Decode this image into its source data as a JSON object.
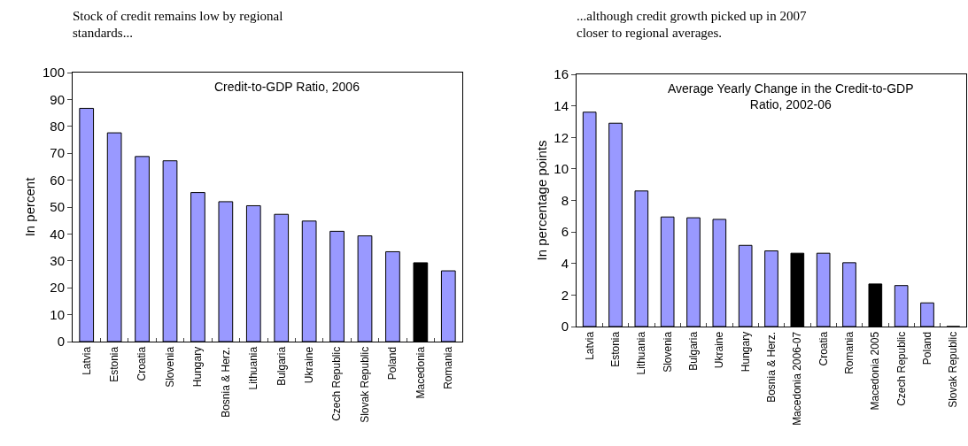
{
  "chart_data": [
    {
      "type": "bar",
      "title": "Stock of credit remains low by regional standards...",
      "ylabel": "In percent",
      "annotations": [
        "Credit-to-GDP Ratio, 2006"
      ],
      "categories": [
        "Latvia",
        "Estonia",
        "Croatia",
        "Slovenia",
        "Hungary",
        "Bosnia & Herz.",
        "Lithuania",
        "Bulgaria",
        "Ukraine",
        "Czech Republic",
        "Slovak Republic",
        "Poland",
        "Macedonia",
        "Romania"
      ],
      "values": [
        86.7,
        77.6,
        68.8,
        67.2,
        55.4,
        52.0,
        50.5,
        47.3,
        44.8,
        41.0,
        39.3,
        33.4,
        29.3,
        26.3
      ],
      "colors": [
        "#9999ff",
        "#9999ff",
        "#9999ff",
        "#9999ff",
        "#9999ff",
        "#9999ff",
        "#9999ff",
        "#9999ff",
        "#9999ff",
        "#9999ff",
        "#9999ff",
        "#9999ff",
        "#000000",
        "#9999ff"
      ],
      "ylim": [
        0,
        100
      ],
      "yticks": [
        0,
        10,
        20,
        30,
        40,
        50,
        60,
        70,
        80,
        90,
        100
      ],
      "grid": false
    },
    {
      "type": "bar",
      "title": "...although credit growth picked up in 2007 closer to regional averages.",
      "ylabel": "In percentage points",
      "annotations": [
        "Average Yearly Change in the Credit-to-GDP Ratio, 2002-06"
      ],
      "categories": [
        "Latvia",
        "Estonia",
        "Lithuania",
        "Slovenia",
        "Bulgaria",
        "Ukraine",
        "Hungary",
        "Bosnia & Herz.",
        "Macedonia 2006-07",
        "Croatia",
        "Romania",
        "Macedonia 2005",
        "Czech Republic",
        "Poland",
        "Slovak Republic"
      ],
      "values": [
        13.6,
        12.9,
        8.6,
        6.95,
        6.9,
        6.8,
        5.15,
        4.8,
        4.65,
        4.65,
        4.05,
        2.7,
        2.6,
        1.5,
        0
      ],
      "colors": [
        "#9999ff",
        "#9999ff",
        "#9999ff",
        "#9999ff",
        "#9999ff",
        "#9999ff",
        "#9999ff",
        "#9999ff",
        "#000000",
        "#9999ff",
        "#9999ff",
        "#000000",
        "#9999ff",
        "#9999ff",
        "#9999ff"
      ],
      "ylim": [
        0,
        16
      ],
      "yticks": [
        0,
        2,
        4,
        6,
        8,
        10,
        12,
        14,
        16
      ],
      "grid": false
    }
  ]
}
